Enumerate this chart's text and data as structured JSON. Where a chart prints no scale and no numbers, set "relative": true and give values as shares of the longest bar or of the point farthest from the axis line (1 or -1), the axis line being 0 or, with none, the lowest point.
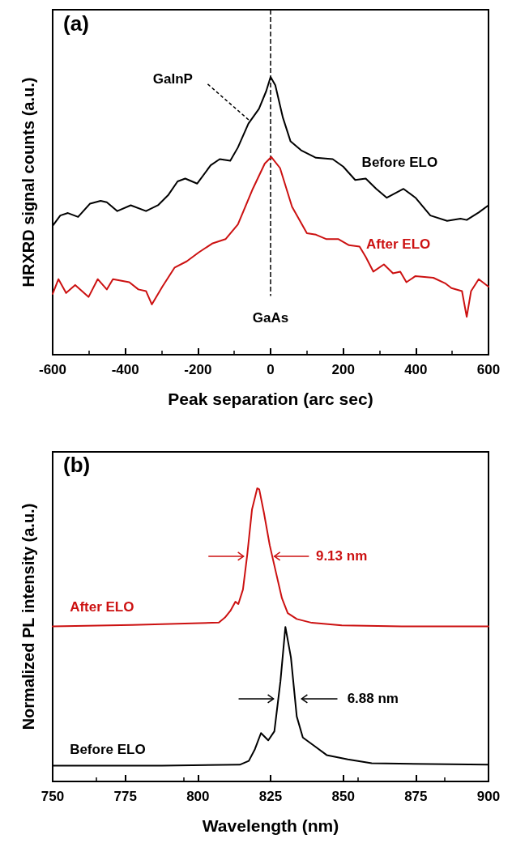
{
  "chart_data": [
    {
      "type": "line",
      "xlabel": "Peak separation (arc sec)",
      "ylabel": "HRXRD signal counts (a.u.)",
      "xlim": [
        -600,
        600
      ],
      "xticks": [
        -600,
        -400,
        -200,
        0,
        200,
        400,
        600
      ],
      "relative": true,
      "legend": false,
      "marker": "none",
      "line_style": "solid",
      "grid": false,
      "series": [
        {
          "name": "Before ELO",
          "color": "#000000",
          "x": [
            -600,
            -579,
            -558,
            -530,
            -497,
            -468,
            -451,
            -422,
            -385,
            -343,
            -310,
            -281,
            -256,
            -235,
            -202,
            -165,
            -140,
            -111,
            -90,
            -61,
            -32,
            -12,
            0,
            13,
            34,
            55,
            84,
            125,
            171,
            200,
            233,
            262,
            291,
            320,
            366,
            399,
            440,
            486,
            523,
            540,
            573,
            600
          ],
          "values": [
            0.464,
            0.501,
            0.51,
            0.496,
            0.544,
            0.554,
            0.549,
            0.517,
            0.538,
            0.517,
            0.538,
            0.576,
            0.624,
            0.634,
            0.616,
            0.682,
            0.704,
            0.698,
            0.746,
            0.832,
            0.885,
            0.949,
            1.0,
            0.97,
            0.853,
            0.768,
            0.736,
            0.709,
            0.704,
            0.677,
            0.629,
            0.634,
            0.597,
            0.565,
            0.597,
            0.565,
            0.501,
            0.482,
            0.49,
            0.485,
            0.512,
            0.538
          ]
        },
        {
          "name": "After ELO",
          "color": "#cc1111",
          "x": [
            -600,
            -584,
            -563,
            -538,
            -501,
            -476,
            -451,
            -434,
            -389,
            -364,
            -343,
            -327,
            -298,
            -264,
            -231,
            -198,
            -161,
            -124,
            -90,
            -49,
            -16,
            2,
            26,
            59,
            100,
            125,
            154,
            187,
            216,
            245,
            262,
            283,
            312,
            337,
            357,
            374,
            399,
            448,
            482,
            498,
            527,
            540,
            552,
            573,
            600
          ],
          "values": [
            0.219,
            0.272,
            0.222,
            0.251,
            0.208,
            0.272,
            0.235,
            0.272,
            0.261,
            0.235,
            0.229,
            0.181,
            0.245,
            0.314,
            0.336,
            0.368,
            0.4,
            0.416,
            0.469,
            0.597,
            0.688,
            0.712,
            0.672,
            0.533,
            0.437,
            0.432,
            0.416,
            0.416,
            0.394,
            0.389,
            0.352,
            0.299,
            0.325,
            0.293,
            0.299,
            0.261,
            0.283,
            0.277,
            0.256,
            0.24,
            0.229,
            0.136,
            0.229,
            0.272,
            0.245
          ]
        }
      ],
      "ref_lines": [
        {
          "axis": "x",
          "value": 0,
          "line_style": "dashed",
          "color": "#000000"
        }
      ],
      "annotations": [
        "(a)",
        {
          "text": "GaInP",
          "x": -59,
          "y": 0.844
        },
        "GaAs"
      ]
    },
    {
      "type": "line",
      "xlabel": "Wavelength (nm)",
      "ylabel": "Normalized PL intensity (a.u.)",
      "xlim": [
        750,
        900
      ],
      "xticks": [
        750,
        775,
        800,
        825,
        850,
        875,
        900
      ],
      "relative": true,
      "legend": false,
      "marker": "none",
      "line_style": "solid",
      "grid": false,
      "series": [
        {
          "name": "After ELO",
          "color": "#cc1111",
          "x": [
            750,
            777.3,
            798,
            807.2,
            809.3,
            811.3,
            812.9,
            813.9,
            815.5,
            817,
            818.6,
            820.4,
            821.1,
            822.7,
            824.7,
            826.8,
            828.9,
            830.9,
            834,
            839.2,
            849.5,
            870.1,
            900
          ],
          "values": [
            0.529,
            0.534,
            0.539,
            0.542,
            0.559,
            0.584,
            0.613,
            0.605,
            0.655,
            0.776,
            0.927,
            1.0,
            0.996,
            0.917,
            0.806,
            0.715,
            0.625,
            0.574,
            0.554,
            0.541,
            0.532,
            0.529,
            0.529
          ]
        },
        {
          "name": "Before ELO",
          "color": "#000000",
          "x": [
            750,
            787.6,
            814.4,
            817.5,
            819.6,
            821.7,
            824.2,
            826.3,
            828.4,
            830.1,
            832,
            834,
            836.1,
            840.2,
            844.3,
            851.6,
            859.8,
            900
          ],
          "values": [
            0.054,
            0.054,
            0.057,
            0.07,
            0.11,
            0.165,
            0.14,
            0.171,
            0.342,
            0.527,
            0.423,
            0.222,
            0.15,
            0.12,
            0.09,
            0.075,
            0.062,
            0.057
          ]
        }
      ],
      "annotations": [
        "(b)",
        "9.13 nm",
        "6.88 nm"
      ]
    }
  ]
}
